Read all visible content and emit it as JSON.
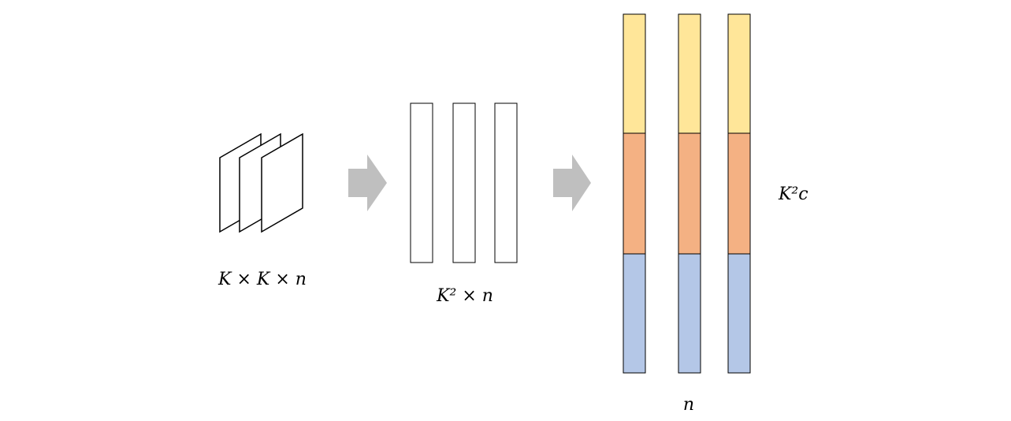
{
  "labels": {
    "kernel_grid": "K × K × n",
    "flattened": "K² × n",
    "stacked_height": "K²c",
    "stacked_width": "n"
  },
  "colors": {
    "segment_top": "#FFE699",
    "segment_middle": "#F4B183",
    "segment_bottom": "#B4C7E7",
    "arrow": "#BFBFBF",
    "stroke": "#000000"
  }
}
